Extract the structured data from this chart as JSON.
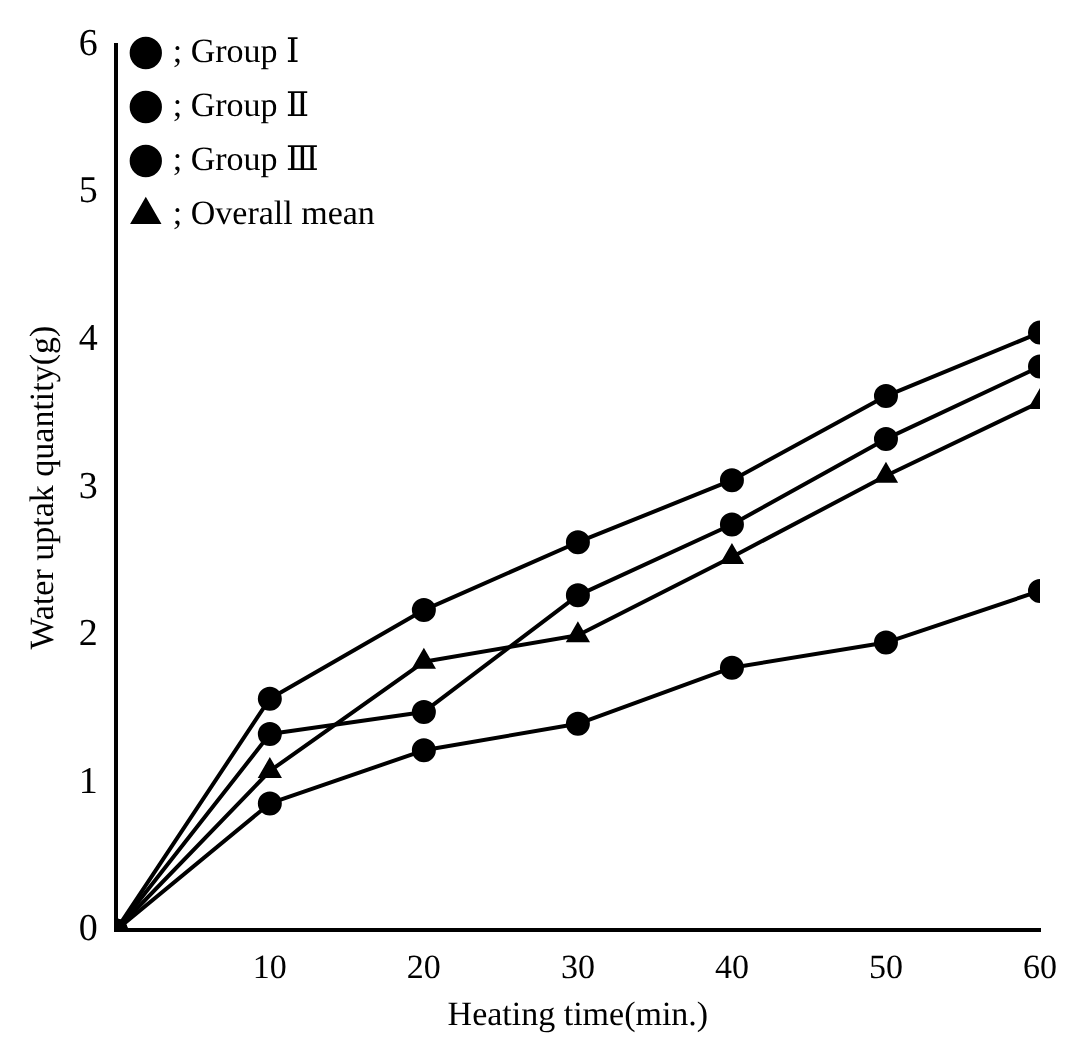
{
  "chart_data": {
    "type": "line",
    "xlabel": "Heating time(min.)",
    "ylabel": "Water uptak quantity(g)",
    "x": [
      0,
      10,
      20,
      30,
      40,
      50,
      60
    ],
    "series": [
      {
        "name": "; Group Ⅰ",
        "color": "#000000",
        "marker": "circle",
        "values": [
          0,
          0.86,
          1.22,
          1.4,
          1.78,
          1.95,
          2.3
        ]
      },
      {
        "name": "; Group Ⅱ",
        "color": "#000000",
        "marker": "circle",
        "values": [
          0,
          1.33,
          1.48,
          2.27,
          2.75,
          3.33,
          3.82
        ]
      },
      {
        "name": "; Group Ⅲ",
        "color": "#000000",
        "marker": "circle",
        "values": [
          0,
          1.57,
          2.17,
          2.63,
          3.05,
          3.62,
          4.05
        ]
      },
      {
        "name": "; Overall mean",
        "color": "#000000",
        "marker": "triangle",
        "values": [
          0,
          1.08,
          1.82,
          2.0,
          2.53,
          3.08,
          3.58
        ]
      }
    ],
    "xlim": [
      0,
      60
    ],
    "xticks": [
      10,
      20,
      30,
      40,
      50,
      60
    ],
    "ylim": [
      0,
      6
    ],
    "yticks": [
      0,
      1,
      2,
      3,
      4,
      5,
      6
    ],
    "grid": false,
    "legend": "top left",
    "line_style": "solid"
  }
}
